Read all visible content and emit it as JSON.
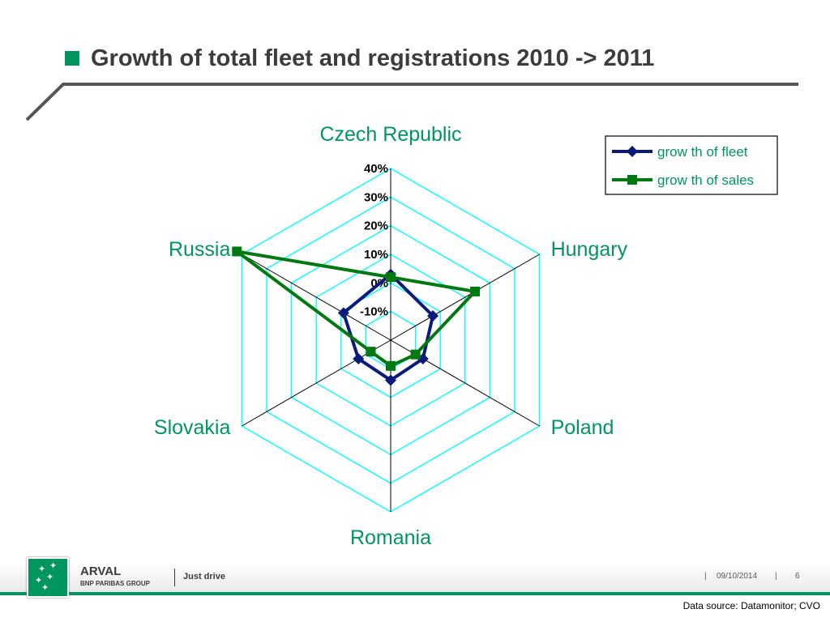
{
  "slide": {
    "title": "Growth of total fleet and registrations 2010 -> 2011",
    "accent_color": "#00965e"
  },
  "chart_data": {
    "type": "radar",
    "categories": [
      "Czech Republic",
      "Hungary",
      "Poland",
      "Romania",
      "Slovakia",
      "Russia"
    ],
    "axis_ticks": [
      "-10%",
      "0%",
      "10%",
      "20%",
      "30%",
      "40%"
    ],
    "range": [
      -20,
      40
    ],
    "grid_color": "#00ffff",
    "series": [
      {
        "name": "grow th of fleet",
        "color": "#0a1a7a",
        "marker": "diamond",
        "values": [
          3,
          -3,
          -7,
          -6,
          -7,
          -1
        ]
      },
      {
        "name": "grow th of sales",
        "color": "#007a10",
        "marker": "square",
        "values": [
          2,
          14,
          -10,
          -11,
          -12,
          42
        ]
      }
    ],
    "legend_position": "top-right"
  },
  "footer": {
    "brand": "ARVAL",
    "brand_sub": "BNP PARIBAS GROUP",
    "tagline": "Just drive",
    "date": "09/10/2014",
    "page": "6",
    "separator": "|",
    "source": "Data source: Datamonitor; CVO"
  }
}
